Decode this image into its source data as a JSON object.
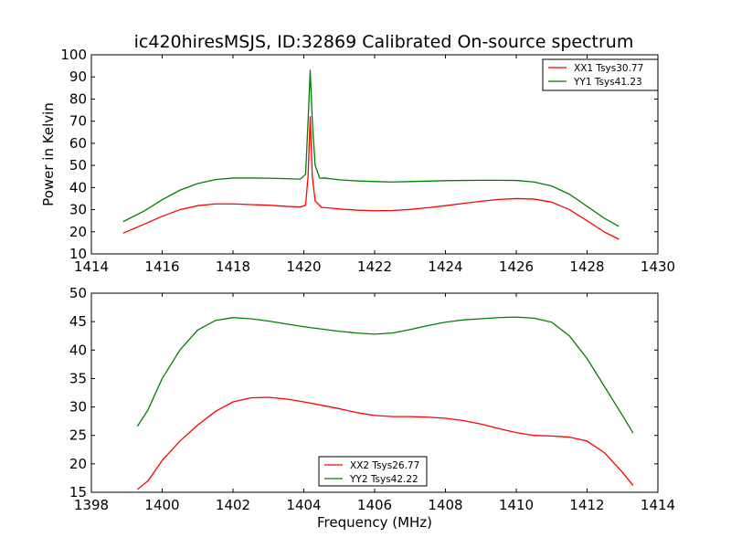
{
  "chart_data": [
    {
      "type": "line",
      "title": "ic420hiresMSJS, ID:32869 Calibrated On-source spectrum",
      "xlabel": "",
      "ylabel": "Power in Kelvin",
      "xlim": [
        1414,
        1430
      ],
      "ylim": [
        10,
        100
      ],
      "xticks": [
        1414,
        1416,
        1418,
        1420,
        1422,
        1424,
        1426,
        1428,
        1430
      ],
      "yticks": [
        10,
        20,
        30,
        40,
        50,
        60,
        70,
        80,
        90,
        100
      ],
      "grid": false,
      "legend_position": "top-right",
      "series": [
        {
          "name": "XX1 Tsys30.77",
          "color": "#ff0000",
          "points": [
            [
              1414.9,
              19.4
            ],
            [
              1415.5,
              23.5
            ],
            [
              1416,
              27
            ],
            [
              1416.5,
              30
            ],
            [
              1417,
              31.8
            ],
            [
              1417.5,
              32.6
            ],
            [
              1418,
              32.6
            ],
            [
              1418.5,
              32.3
            ],
            [
              1419,
              32
            ],
            [
              1419.5,
              31.5
            ],
            [
              1419.9,
              31.2
            ],
            [
              1420.05,
              32
            ],
            [
              1420.12,
              45
            ],
            [
              1420.18,
              72
            ],
            [
              1420.24,
              45
            ],
            [
              1420.32,
              34
            ],
            [
              1420.5,
              31
            ],
            [
              1420.7,
              30.8
            ],
            [
              1421,
              30.3
            ],
            [
              1421.5,
              29.8
            ],
            [
              1422,
              29.5
            ],
            [
              1422.5,
              29.6
            ],
            [
              1423,
              30.1
            ],
            [
              1423.5,
              30.9
            ],
            [
              1424,
              31.8
            ],
            [
              1424.5,
              32.8
            ],
            [
              1425,
              33.8
            ],
            [
              1425.5,
              34.6
            ],
            [
              1426,
              35
            ],
            [
              1426.5,
              34.8
            ],
            [
              1427,
              33.4
            ],
            [
              1427.5,
              30
            ],
            [
              1428,
              25
            ],
            [
              1428.5,
              19.8
            ],
            [
              1428.9,
              16.6
            ]
          ]
        },
        {
          "name": "YY1 Tsys41.23",
          "color": "#007f00",
          "points": [
            [
              1414.9,
              24.6
            ],
            [
              1415.5,
              29.5
            ],
            [
              1416,
              34.5
            ],
            [
              1416.5,
              38.8
            ],
            [
              1417,
              41.8
            ],
            [
              1417.5,
              43.6
            ],
            [
              1418,
              44.3
            ],
            [
              1418.5,
              44.3
            ],
            [
              1419,
              44.2
            ],
            [
              1419.5,
              44
            ],
            [
              1419.9,
              43.8
            ],
            [
              1420.05,
              46
            ],
            [
              1420.12,
              70
            ],
            [
              1420.18,
              93
            ],
            [
              1420.24,
              70
            ],
            [
              1420.32,
              50
            ],
            [
              1420.45,
              44.2
            ],
            [
              1420.6,
              44.3
            ],
            [
              1421,
              43.5
            ],
            [
              1421.5,
              43
            ],
            [
              1422,
              42.7
            ],
            [
              1422.5,
              42.5
            ],
            [
              1423,
              42.7
            ],
            [
              1423.5,
              42.9
            ],
            [
              1424,
              43.1
            ],
            [
              1424.5,
              43.2
            ],
            [
              1425,
              43.3
            ],
            [
              1425.5,
              43.3
            ],
            [
              1426,
              43.2
            ],
            [
              1426.5,
              42.5
            ],
            [
              1427,
              40.7
            ],
            [
              1427.5,
              37
            ],
            [
              1428,
              31.5
            ],
            [
              1428.5,
              26
            ],
            [
              1428.9,
              22.4
            ]
          ]
        }
      ]
    },
    {
      "type": "line",
      "title": "",
      "xlabel": "Frequency (MHz)",
      "ylabel": "",
      "xlim": [
        1398,
        1414
      ],
      "ylim": [
        15,
        50
      ],
      "xticks": [
        1398,
        1400,
        1402,
        1404,
        1406,
        1408,
        1410,
        1412,
        1414
      ],
      "yticks": [
        15,
        20,
        25,
        30,
        35,
        40,
        45,
        50
      ],
      "grid": false,
      "legend_position": "bottom-center",
      "series": [
        {
          "name": "XX2 Tsys26.77",
          "color": "#ff0000",
          "points": [
            [
              1399.3,
              15.5
            ],
            [
              1399.6,
              17
            ],
            [
              1400,
              20.6
            ],
            [
              1400.5,
              24
            ],
            [
              1401,
              26.8
            ],
            [
              1401.5,
              29.2
            ],
            [
              1402,
              30.9
            ],
            [
              1402.5,
              31.6
            ],
            [
              1403,
              31.7
            ],
            [
              1403.5,
              31.4
            ],
            [
              1404,
              30.9
            ],
            [
              1404.5,
              30.3
            ],
            [
              1405,
              29.7
            ],
            [
              1405.5,
              29
            ],
            [
              1406,
              28.5
            ],
            [
              1406.5,
              28.3
            ],
            [
              1407,
              28.3
            ],
            [
              1407.5,
              28.2
            ],
            [
              1408,
              28
            ],
            [
              1408.5,
              27.6
            ],
            [
              1409,
              27
            ],
            [
              1409.5,
              26.2
            ],
            [
              1410,
              25.5
            ],
            [
              1410.5,
              25
            ],
            [
              1411,
              24.9
            ],
            [
              1411.5,
              24.7
            ],
            [
              1412,
              24
            ],
            [
              1412.5,
              21.9
            ],
            [
              1413,
              18.5
            ],
            [
              1413.3,
              16.2
            ]
          ]
        },
        {
          "name": "YY2 Tsys42.22",
          "color": "#007f00",
          "points": [
            [
              1399.3,
              26.6
            ],
            [
              1399.6,
              29.5
            ],
            [
              1400,
              35
            ],
            [
              1400.5,
              40
            ],
            [
              1401,
              43.5
            ],
            [
              1401.5,
              45.2
            ],
            [
              1402,
              45.7
            ],
            [
              1402.5,
              45.5
            ],
            [
              1403,
              45.1
            ],
            [
              1403.5,
              44.6
            ],
            [
              1404,
              44.1
            ],
            [
              1404.5,
              43.7
            ],
            [
              1405,
              43.3
            ],
            [
              1405.5,
              43
            ],
            [
              1406,
              42.8
            ],
            [
              1406.5,
              43
            ],
            [
              1407,
              43.6
            ],
            [
              1407.5,
              44.3
            ],
            [
              1408,
              44.9
            ],
            [
              1408.5,
              45.3
            ],
            [
              1409,
              45.5
            ],
            [
              1409.5,
              45.7
            ],
            [
              1410,
              45.8
            ],
            [
              1410.5,
              45.6
            ],
            [
              1411,
              44.9
            ],
            [
              1411.5,
              42.5
            ],
            [
              1412,
              38.5
            ],
            [
              1412.5,
              33.5
            ],
            [
              1413,
              28.5
            ],
            [
              1413.3,
              25.4
            ]
          ]
        }
      ]
    }
  ]
}
